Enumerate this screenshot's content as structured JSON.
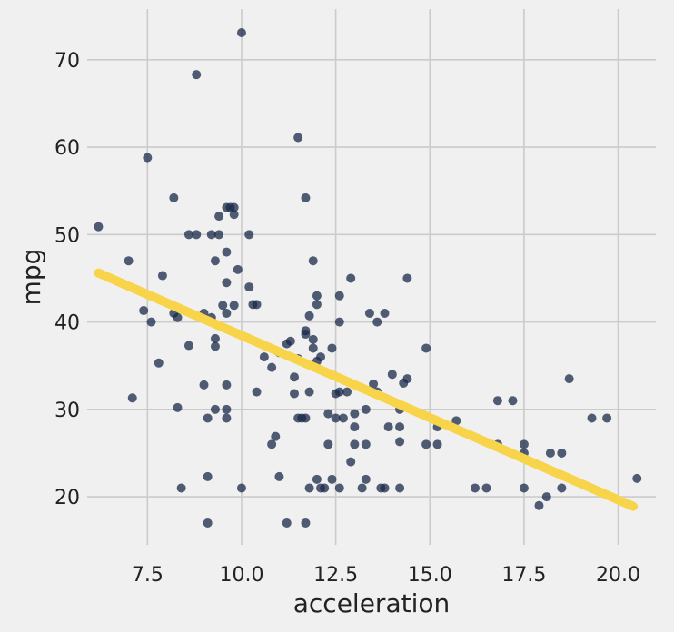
{
  "chart_data": {
    "type": "scatter",
    "xlabel": "acceleration",
    "ylabel": "mpg",
    "xlim": [
      5.9,
      21.0
    ],
    "ylim": [
      14.5,
      75.8
    ],
    "xticks": [
      7.5,
      10.0,
      12.5,
      15.0,
      17.5,
      20.0
    ],
    "yticks": [
      20,
      30,
      40,
      50,
      60,
      70
    ],
    "xtick_labels": [
      "7.5",
      "10.0",
      "12.5",
      "15.0",
      "17.5",
      "20.0"
    ],
    "ytick_labels": [
      "20",
      "30",
      "40",
      "50",
      "60",
      "70"
    ],
    "grid": true,
    "colors": {
      "background": "#f0f0f0",
      "grid": "#cbcbcb",
      "points": "#1a2a4a",
      "fit_line": "#f8d44a"
    },
    "fit_line": {
      "x": [
        6.2,
        20.4
      ],
      "y": [
        45.6,
        18.9
      ]
    },
    "points": [
      [
        6.2,
        50.9
      ],
      [
        7.0,
        47.0
      ],
      [
        7.1,
        31.3
      ],
      [
        7.4,
        41.3
      ],
      [
        7.5,
        58.8
      ],
      [
        7.6,
        40.0
      ],
      [
        7.8,
        35.3
      ],
      [
        7.9,
        45.3
      ],
      [
        8.2,
        54.2
      ],
      [
        8.2,
        41.0
      ],
      [
        8.3,
        40.5
      ],
      [
        8.3,
        30.2
      ],
      [
        8.4,
        21.0
      ],
      [
        8.6,
        37.3
      ],
      [
        8.6,
        50.0
      ],
      [
        8.8,
        68.3
      ],
      [
        8.8,
        50.0
      ],
      [
        9.0,
        32.8
      ],
      [
        9.0,
        41.0
      ],
      [
        9.1,
        29.0
      ],
      [
        9.1,
        22.3
      ],
      [
        9.1,
        17.0
      ],
      [
        9.2,
        40.5
      ],
      [
        9.2,
        50.0
      ],
      [
        9.3,
        38.1
      ],
      [
        9.3,
        30.0
      ],
      [
        9.3,
        37.2
      ],
      [
        9.3,
        47.0
      ],
      [
        9.4,
        50.0
      ],
      [
        9.4,
        52.1
      ],
      [
        9.5,
        41.9
      ],
      [
        9.6,
        53.1
      ],
      [
        9.6,
        41.0
      ],
      [
        9.6,
        44.5
      ],
      [
        9.6,
        48.0
      ],
      [
        9.6,
        32.8
      ],
      [
        9.6,
        30.0
      ],
      [
        9.6,
        29.0
      ],
      [
        9.7,
        53.1
      ],
      [
        9.8,
        53.1
      ],
      [
        9.8,
        52.3
      ],
      [
        9.8,
        41.9
      ],
      [
        9.9,
        46.0
      ],
      [
        10.0,
        73.1
      ],
      [
        10.0,
        21.0
      ],
      [
        10.2,
        50.0
      ],
      [
        10.2,
        44.0
      ],
      [
        10.3,
        42.0
      ],
      [
        10.4,
        42.0
      ],
      [
        10.4,
        32.0
      ],
      [
        10.6,
        36.0
      ],
      [
        10.8,
        34.8
      ],
      [
        10.8,
        26.0
      ],
      [
        10.9,
        26.9
      ],
      [
        11.0,
        22.3
      ],
      [
        11.0,
        36.5
      ],
      [
        11.2,
        37.5
      ],
      [
        11.2,
        17.0
      ],
      [
        11.3,
        37.8
      ],
      [
        11.4,
        33.7
      ],
      [
        11.4,
        31.8
      ],
      [
        11.5,
        61.1
      ],
      [
        11.5,
        35.8
      ],
      [
        11.5,
        29.0
      ],
      [
        11.6,
        29.0
      ],
      [
        11.7,
        54.2
      ],
      [
        11.7,
        39.0
      ],
      [
        11.7,
        38.6
      ],
      [
        11.7,
        29.0
      ],
      [
        11.7,
        17.0
      ],
      [
        11.8,
        40.7
      ],
      [
        11.8,
        32.0
      ],
      [
        11.8,
        21.0
      ],
      [
        11.9,
        47.0
      ],
      [
        11.9,
        38.0
      ],
      [
        11.9,
        37.0
      ],
      [
        12.0,
        43.0
      ],
      [
        12.0,
        42.0
      ],
      [
        12.0,
        35.5
      ],
      [
        12.0,
        22.0
      ],
      [
        12.1,
        36.0
      ],
      [
        12.1,
        21.0
      ],
      [
        12.2,
        21.0
      ],
      [
        12.3,
        29.5
      ],
      [
        12.3,
        26.0
      ],
      [
        12.4,
        37.0
      ],
      [
        12.4,
        22.0
      ],
      [
        12.5,
        29.0
      ],
      [
        12.5,
        31.8
      ],
      [
        12.6,
        43.0
      ],
      [
        12.6,
        40.0
      ],
      [
        12.6,
        32.0
      ],
      [
        12.6,
        21.0
      ],
      [
        12.7,
        29.0
      ],
      [
        12.8,
        32.0
      ],
      [
        12.9,
        45.0
      ],
      [
        12.9,
        24.0
      ],
      [
        13.0,
        29.5
      ],
      [
        13.0,
        28.0
      ],
      [
        13.0,
        26.0
      ],
      [
        13.2,
        21.0
      ],
      [
        13.3,
        30.0
      ],
      [
        13.3,
        26.0
      ],
      [
        13.3,
        22.0
      ],
      [
        13.4,
        41.0
      ],
      [
        13.5,
        32.9
      ],
      [
        13.6,
        40.0
      ],
      [
        13.6,
        32.0
      ],
      [
        13.7,
        21.0
      ],
      [
        13.8,
        41.0
      ],
      [
        13.8,
        21.0
      ],
      [
        13.9,
        28.0
      ],
      [
        14.0,
        34.0
      ],
      [
        14.2,
        28.0
      ],
      [
        14.2,
        26.3
      ],
      [
        14.2,
        30.0
      ],
      [
        14.2,
        21.0
      ],
      [
        14.3,
        33.0
      ],
      [
        14.4,
        45.0
      ],
      [
        14.4,
        33.5
      ],
      [
        14.9,
        37.0
      ],
      [
        14.9,
        26.0
      ],
      [
        15.2,
        28.0
      ],
      [
        15.2,
        26.0
      ],
      [
        15.7,
        28.7
      ],
      [
        16.2,
        21.0
      ],
      [
        16.5,
        21.0
      ],
      [
        16.8,
        26.0
      ],
      [
        16.8,
        31.0
      ],
      [
        17.2,
        31.0
      ],
      [
        17.5,
        26.0
      ],
      [
        17.5,
        25.0
      ],
      [
        17.5,
        21.0
      ],
      [
        17.9,
        19.0
      ],
      [
        18.1,
        20.0
      ],
      [
        18.2,
        25.0
      ],
      [
        18.5,
        25.0
      ],
      [
        18.5,
        21.0
      ],
      [
        18.7,
        33.5
      ],
      [
        19.3,
        29.0
      ],
      [
        19.7,
        29.0
      ],
      [
        20.5,
        22.1
      ]
    ]
  }
}
